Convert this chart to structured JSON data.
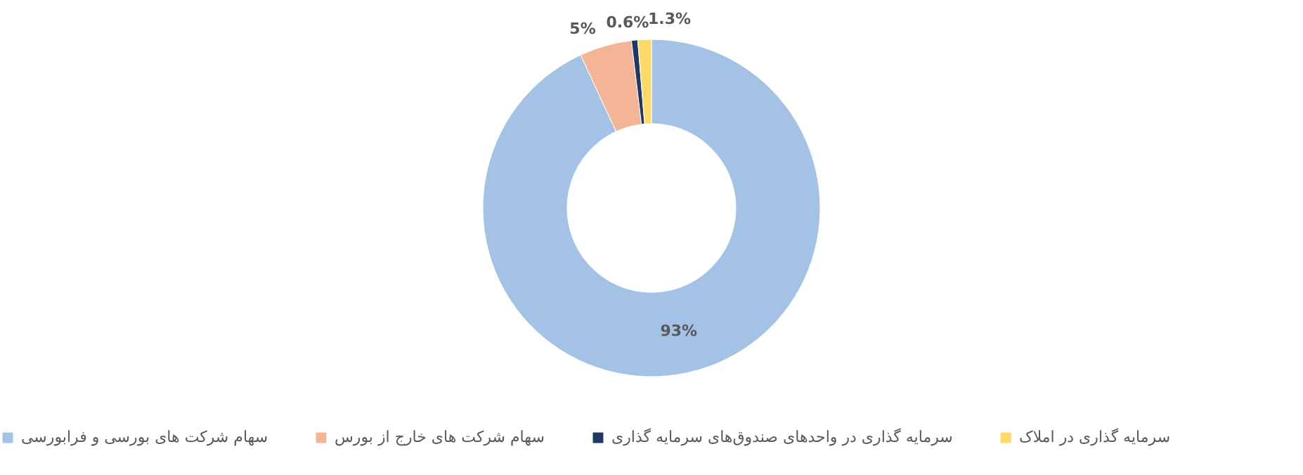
{
  "chart_data": {
    "type": "donut",
    "categories": [
      "سهام شرکت های بورسی و فرابورسی",
      "سهام شرکت های خارج از بورس",
      "سرمایه گذاری در واحدهای صندوق‌های سرمایه گذاری",
      "سرمایه گذاری در املاک"
    ],
    "values": [
      93,
      5,
      0.6,
      1.3
    ],
    "colors": [
      "#a4c2e6",
      "#f4b496",
      "#1f3864",
      "#ffd966"
    ],
    "value_labels": [
      "93%",
      "5%",
      "0.6%",
      "1.3%"
    ],
    "legend": "bottom"
  }
}
